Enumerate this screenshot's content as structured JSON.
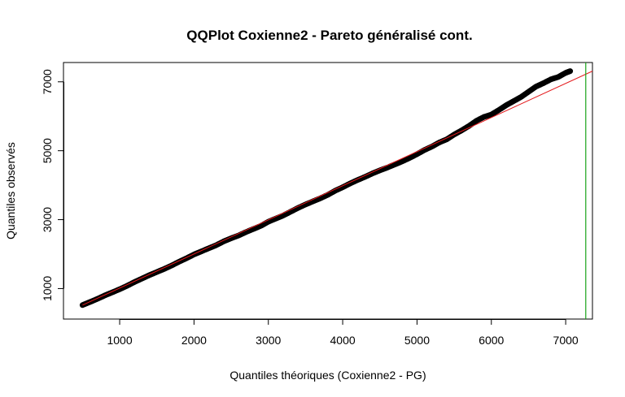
{
  "chart_data": {
    "type": "scatter",
    "title": "QQPlot Coxienne2 - Pareto généralisé cont.",
    "xlabel": "Quantiles théoriques (Coxienne2 - PG)",
    "ylabel": "Quantiles observés",
    "xlim": [
      244,
      7360
    ],
    "ylim": [
      115,
      7560
    ],
    "x_ticks": [
      1000,
      2000,
      3000,
      4000,
      5000,
      6000,
      7000
    ],
    "x_tick_labels": [
      "1000",
      "2000",
      "3000",
      "4000",
      "5000",
      "6000",
      "7000"
    ],
    "y_ticks": [
      1000,
      3000,
      5000,
      7000
    ],
    "y_tick_labels": [
      "1000",
      "3000",
      "5000",
      "7000"
    ],
    "grid": false,
    "colors": {
      "points": "#000000",
      "reference_line": "#e41a1c",
      "threshold_line": "#1aa31a"
    },
    "series": [
      {
        "marker": "open-circle",
        "x": [
          500,
          600,
          700,
          800,
          900,
          1000,
          1100,
          1200,
          1300,
          1400,
          1500,
          1600,
          1700,
          1800,
          1900,
          2000,
          2100,
          2200,
          2300,
          2400,
          2500,
          2600,
          2700,
          2800,
          2900,
          3000,
          3100,
          3200,
          3300,
          3400,
          3500,
          3600,
          3700,
          3800,
          3900,
          4000,
          4100,
          4200,
          4300,
          4400,
          4500,
          4600,
          4700,
          4800,
          4900,
          5000,
          5100,
          5200,
          5300,
          5400,
          5500,
          5600,
          5700,
          5800,
          5900,
          6000,
          6100,
          6200,
          6300,
          6400,
          6500,
          6600,
          6700,
          6800,
          6900,
          7000,
          7060
        ],
        "y": [
          520,
          610,
          700,
          800,
          890,
          980,
          1080,
          1190,
          1290,
          1390,
          1480,
          1570,
          1670,
          1780,
          1880,
          1990,
          2080,
          2170,
          2260,
          2370,
          2460,
          2540,
          2640,
          2730,
          2820,
          2940,
          3030,
          3120,
          3230,
          3340,
          3440,
          3530,
          3620,
          3720,
          3840,
          3940,
          4050,
          4150,
          4240,
          4340,
          4430,
          4510,
          4600,
          4690,
          4790,
          4900,
          5020,
          5120,
          5240,
          5330,
          5470,
          5590,
          5720,
          5870,
          5980,
          6050,
          6180,
          6320,
          6440,
          6560,
          6710,
          6860,
          6960,
          7070,
          7140,
          7260,
          7310
        ]
      }
    ],
    "reference_line": {
      "x": [
        500,
        7360
      ],
      "y": [
        520,
        7310
      ]
    },
    "threshold_line": {
      "x": 7270
    }
  }
}
